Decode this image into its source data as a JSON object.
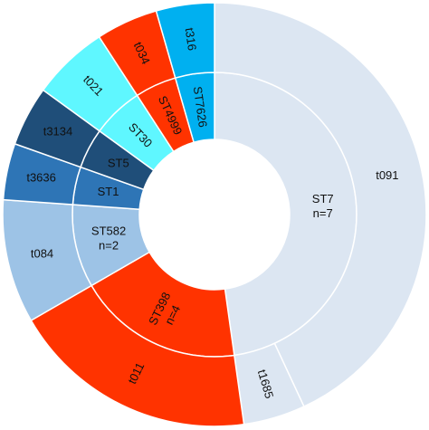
{
  "chart_data": {
    "type": "sunburst",
    "groups": [
      {
        "label": [
          "ST7",
          "n=7"
        ],
        "value": 172,
        "color": "#dce6f2",
        "children": [
          {
            "label": "t091",
            "value": 155
          },
          {
            "label": "t1685",
            "value": 17
          }
        ]
      },
      {
        "label": [
          "ST398",
          "n=4"
        ],
        "value": 68,
        "color": "#ff3300",
        "children": [
          {
            "label": "t011",
            "value": 68
          }
        ]
      },
      {
        "label": [
          "ST582",
          "n=2"
        ],
        "value": 34,
        "color": "#9dc3e6",
        "children": [
          {
            "label": "t084",
            "value": 34
          }
        ]
      },
      {
        "label": [
          "ST1"
        ],
        "value": 15.5,
        "color": "#2e75b6",
        "children": [
          {
            "label": "t3636",
            "value": 15.5
          }
        ]
      },
      {
        "label": [
          "ST5"
        ],
        "value": 16.5,
        "color": "#1f4e79",
        "children": [
          {
            "label": "t3134",
            "value": 16.5
          }
        ]
      },
      {
        "label": [
          "ST30"
        ],
        "value": 21,
        "color": "#5ff7ff",
        "children": [
          {
            "label": "t021",
            "value": 21
          }
        ]
      },
      {
        "label": [
          "ST4999"
        ],
        "value": 17,
        "color": "#ff3300",
        "children": [
          {
            "label": "t034",
            "value": 17
          }
        ]
      },
      {
        "label": [
          "ST7626"
        ],
        "value": 16,
        "color": "#00b0f0",
        "children": [
          {
            "label": "t316",
            "value": 16
          }
        ]
      }
    ]
  }
}
